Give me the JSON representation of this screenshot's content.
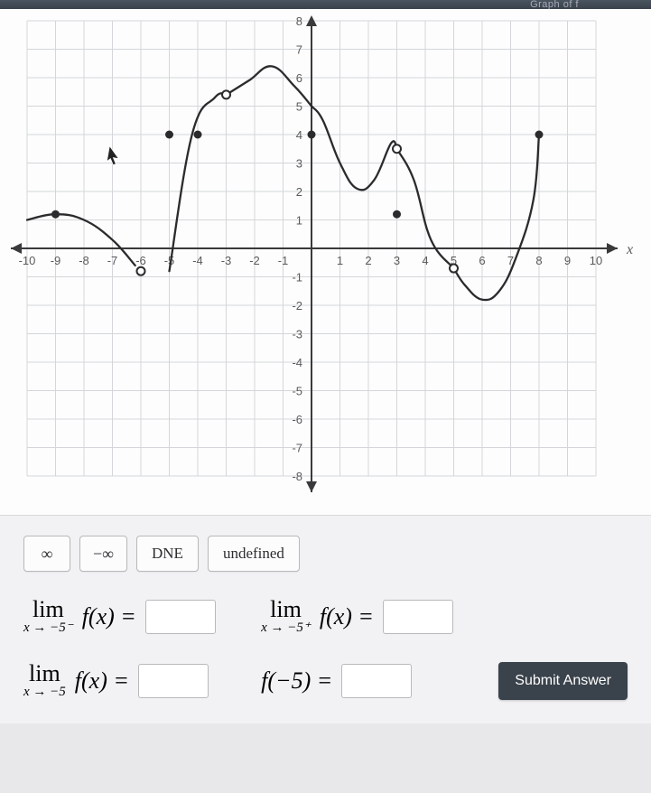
{
  "header_text": "Graph of f",
  "graph": {
    "type": "line",
    "xlim": [
      -10,
      10
    ],
    "ylim": [
      -8,
      8
    ],
    "xtick_step": 1,
    "ytick_step": 1,
    "grid_color": "#d4d6d9",
    "axis_color": "#3a3a3c",
    "background_color": "#fdfdfd",
    "x_axis_label": "x",
    "label_fontsize": 16,
    "tick_fontsize": 13,
    "tick_color": "#5a5a5c",
    "curve_color": "#2b2b2d",
    "curve_width": 2.3,
    "curve_segments": [
      {
        "from": [
          -10,
          1.0
        ],
        "pts": [
          [
            -9,
            1.2
          ],
          [
            -8,
            1.0
          ],
          [
            -7,
            0.3
          ],
          [
            -6.2,
            -0.6
          ]
        ],
        "open_end": true
      },
      {
        "from": [
          -5,
          -0.8
        ],
        "pts": [
          [
            -4.2,
            4.0
          ],
          [
            -3.4,
            5.3
          ],
          [
            -3.0,
            5.4
          ]
        ],
        "open_start": true,
        "open_end": true
      },
      {
        "from": [
          -3.0,
          5.4
        ],
        "pts": [
          [
            -2.2,
            5.9
          ],
          [
            -1.4,
            6.4
          ],
          [
            -0.6,
            5.7
          ],
          [
            0.0,
            5.0
          ]
        ],
        "open_start": true
      },
      {
        "from": [
          0.0,
          5.0
        ],
        "pts": [
          [
            0.4,
            4.5
          ],
          [
            1.0,
            3.0
          ],
          [
            1.6,
            2.1
          ],
          [
            2.2,
            2.4
          ],
          [
            2.8,
            3.7
          ],
          [
            3.0,
            3.5
          ]
        ],
        "open_end": true
      },
      {
        "from": [
          3.0,
          3.5
        ],
        "pts": [
          [
            3.6,
            2.4
          ],
          [
            4.2,
            0.3
          ],
          [
            5.0,
            -0.7
          ]
        ],
        "open_start": true,
        "open_end": true
      },
      {
        "from": [
          5.0,
          -0.7
        ],
        "pts": [
          [
            5.4,
            -1.3
          ],
          [
            6.0,
            -1.8
          ],
          [
            6.6,
            -1.5
          ],
          [
            7.2,
            -0.3
          ],
          [
            7.8,
            1.7
          ],
          [
            8.0,
            4.0
          ]
        ],
        "open_start": true,
        "open_end": true
      }
    ],
    "filled_points": [
      {
        "x": -9,
        "y": 1.2
      },
      {
        "x": -5,
        "y": 4
      },
      {
        "x": -4,
        "y": 4
      },
      {
        "x": 0,
        "y": 4
      },
      {
        "x": 3,
        "y": 1.2
      },
      {
        "x": 8,
        "y": 4
      }
    ],
    "hollow_points": [
      {
        "x": -6,
        "y": -0.8
      },
      {
        "x": -3,
        "y": 5.4
      },
      {
        "x": 3,
        "y": 3.5
      },
      {
        "x": 5,
        "y": -0.7
      }
    ],
    "point_radius": 4.5,
    "point_fill": "#2b2b2d",
    "hollow_fill": "#ffffff"
  },
  "options": {
    "inf": "∞",
    "neg_inf": "−∞",
    "dne": "DNE",
    "undefined": "undefined"
  },
  "limits": {
    "left": {
      "subscript": "x → −5⁻",
      "expr": "f(x) ="
    },
    "right": {
      "subscript": "x → −5⁺",
      "expr": "f(x) ="
    },
    "two": {
      "subscript": "x → −5",
      "expr": "f(x) ="
    },
    "value": {
      "expr": "f(−5) ="
    }
  },
  "lim_word": "lim",
  "submit_label": "Submit Answer"
}
